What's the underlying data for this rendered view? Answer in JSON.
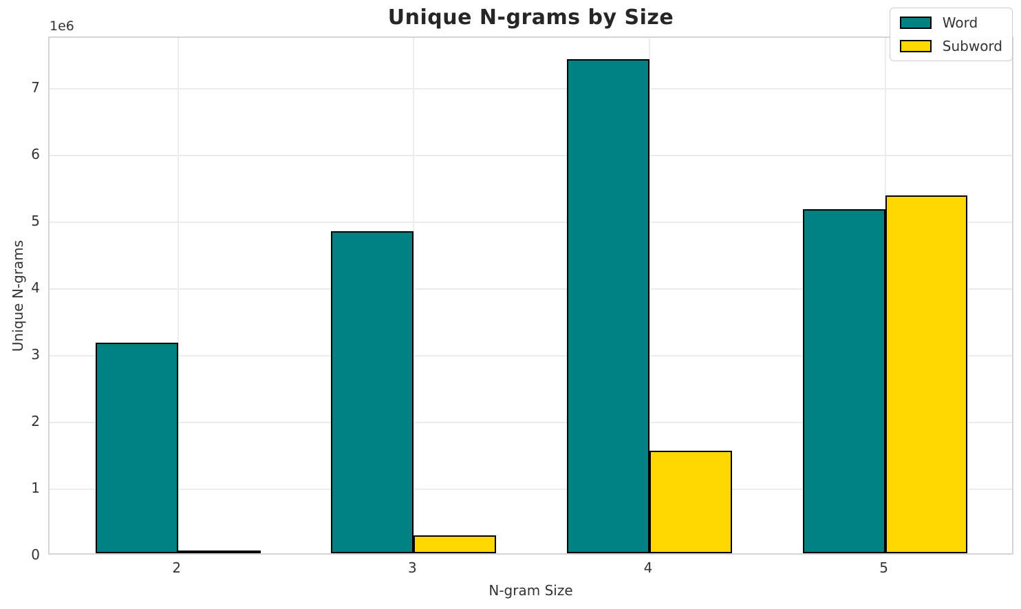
{
  "chart_data": {
    "type": "bar",
    "title": "Unique N-grams by Size",
    "xlabel": "N-gram Size",
    "ylabel": "Unique N-grams",
    "offset_label": "1e6",
    "categories": [
      "2",
      "3",
      "4",
      "5"
    ],
    "series": [
      {
        "name": "Word",
        "color": "#008080",
        "values": [
          3150000,
          4820000,
          7400000,
          5150000
        ]
      },
      {
        "name": "Subword",
        "color": "#FFD700",
        "values": [
          45000,
          270000,
          1540000,
          5360000
        ]
      }
    ],
    "ylim": [
      0,
      7760000
    ],
    "yticks": {
      "values": [
        0,
        1000000,
        2000000,
        3000000,
        4000000,
        5000000,
        6000000,
        7000000
      ],
      "labels": [
        "0",
        "1",
        "2",
        "3",
        "4",
        "5",
        "6",
        "7"
      ]
    },
    "bar_width": 0.35,
    "bar_edge_color": "#000000",
    "grid": true,
    "grid_color": "#ececec",
    "spine_color": "#d4d4d4",
    "legend_position": "upper right"
  }
}
